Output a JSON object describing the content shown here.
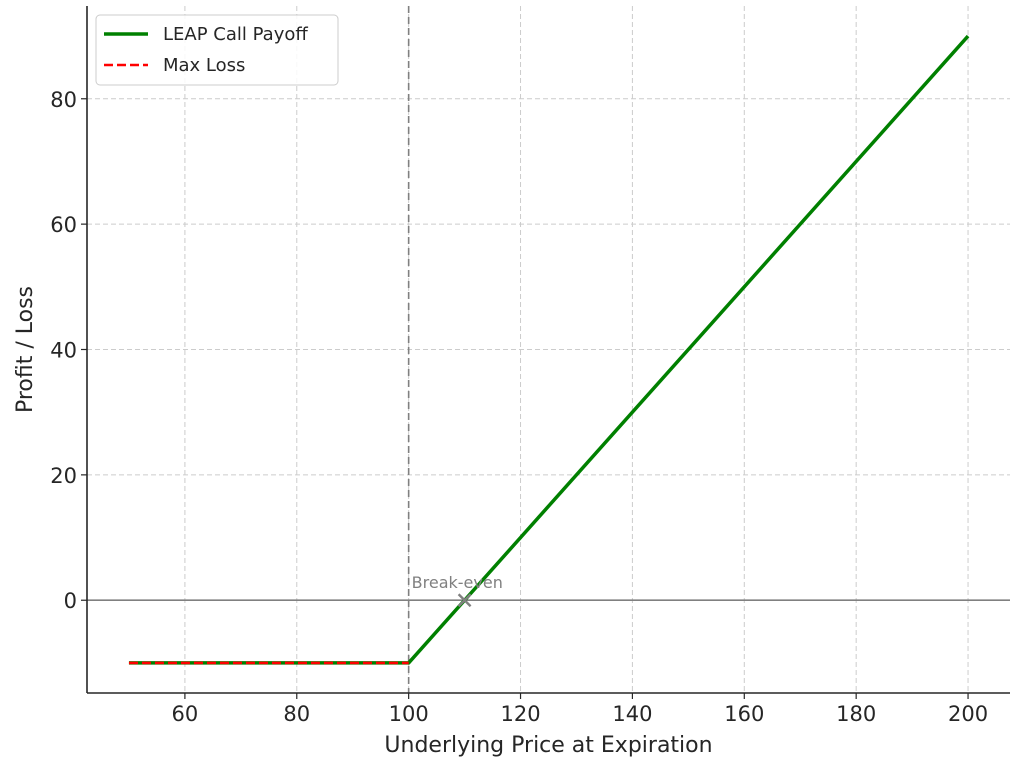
{
  "chart_data": {
    "type": "line",
    "xlabel": "Underlying Price at Expiration",
    "ylabel": "Profit / Loss",
    "xlim": [
      42.5,
      207.5
    ],
    "ylim": [
      -14.8,
      94.8
    ],
    "xticks": [
      60,
      80,
      100,
      120,
      140,
      160,
      180,
      200
    ],
    "yticks": [
      0,
      20,
      40,
      60,
      80
    ],
    "grid": true,
    "legend_position": "top-left",
    "series": [
      {
        "name": "LEAP Call Payoff",
        "color": "#008000",
        "style": "solid",
        "x": [
          50,
          100,
          200
        ],
        "y": [
          -10,
          -10,
          90
        ]
      },
      {
        "name": "Max Loss",
        "color": "#ff0000",
        "style": "dashed",
        "x": [
          50,
          100
        ],
        "y": [
          -10,
          -10
        ]
      }
    ],
    "reference_lines": {
      "vertical_x": 100,
      "horizontal_y": 0
    },
    "annotations": [
      {
        "text": "Break-even",
        "x": 110,
        "y": 0,
        "marker": "x",
        "color": "#808080"
      }
    ]
  }
}
